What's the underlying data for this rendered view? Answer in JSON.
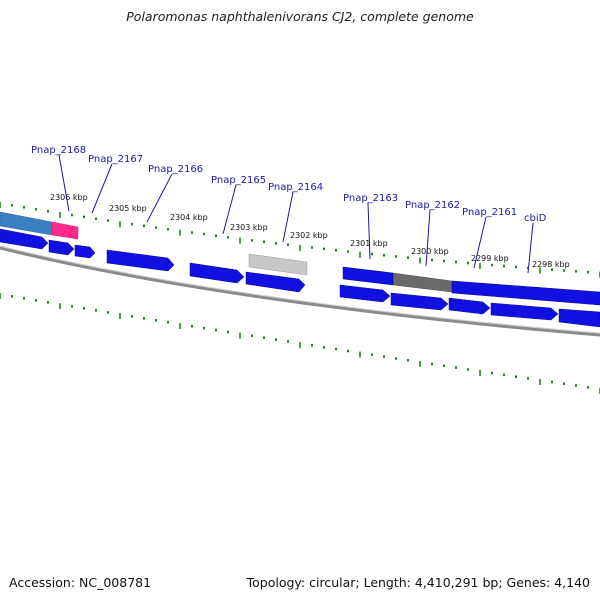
{
  "title": "Polaromonas naphthalenivorans CJ2, complete genome",
  "accession_text": "Accession: NC_008781",
  "summary_text": "Topology: circular; Length: 4,410,291 bp; Genes: 4,140",
  "colors": {
    "cds": "#1010e0",
    "highlight": "#ff2a8a",
    "feature_blue": "#3a7fc0",
    "feature_light_gray": "#c8c8c8",
    "feature_dark_gray": "#6a6a6a",
    "backbone": "#8a8a8a",
    "tick": "#1a8a1a",
    "label": "#1a1aa6"
  },
  "kbp_ticks": [
    "2306 kbp",
    "2305 kbp",
    "2304 kbp",
    "2303 kbp",
    "2302 kbp",
    "2301 kbp",
    "2300 kbp",
    "2299 kbp",
    "2298 kbp"
  ],
  "gene_labels": [
    "Pnap_2168",
    "Pnap_2167",
    "Pnap_2166",
    "Pnap_2165",
    "Pnap_2164",
    "Pnap_2163",
    "Pnap_2162",
    "Pnap_2161",
    "cbiD"
  ]
}
